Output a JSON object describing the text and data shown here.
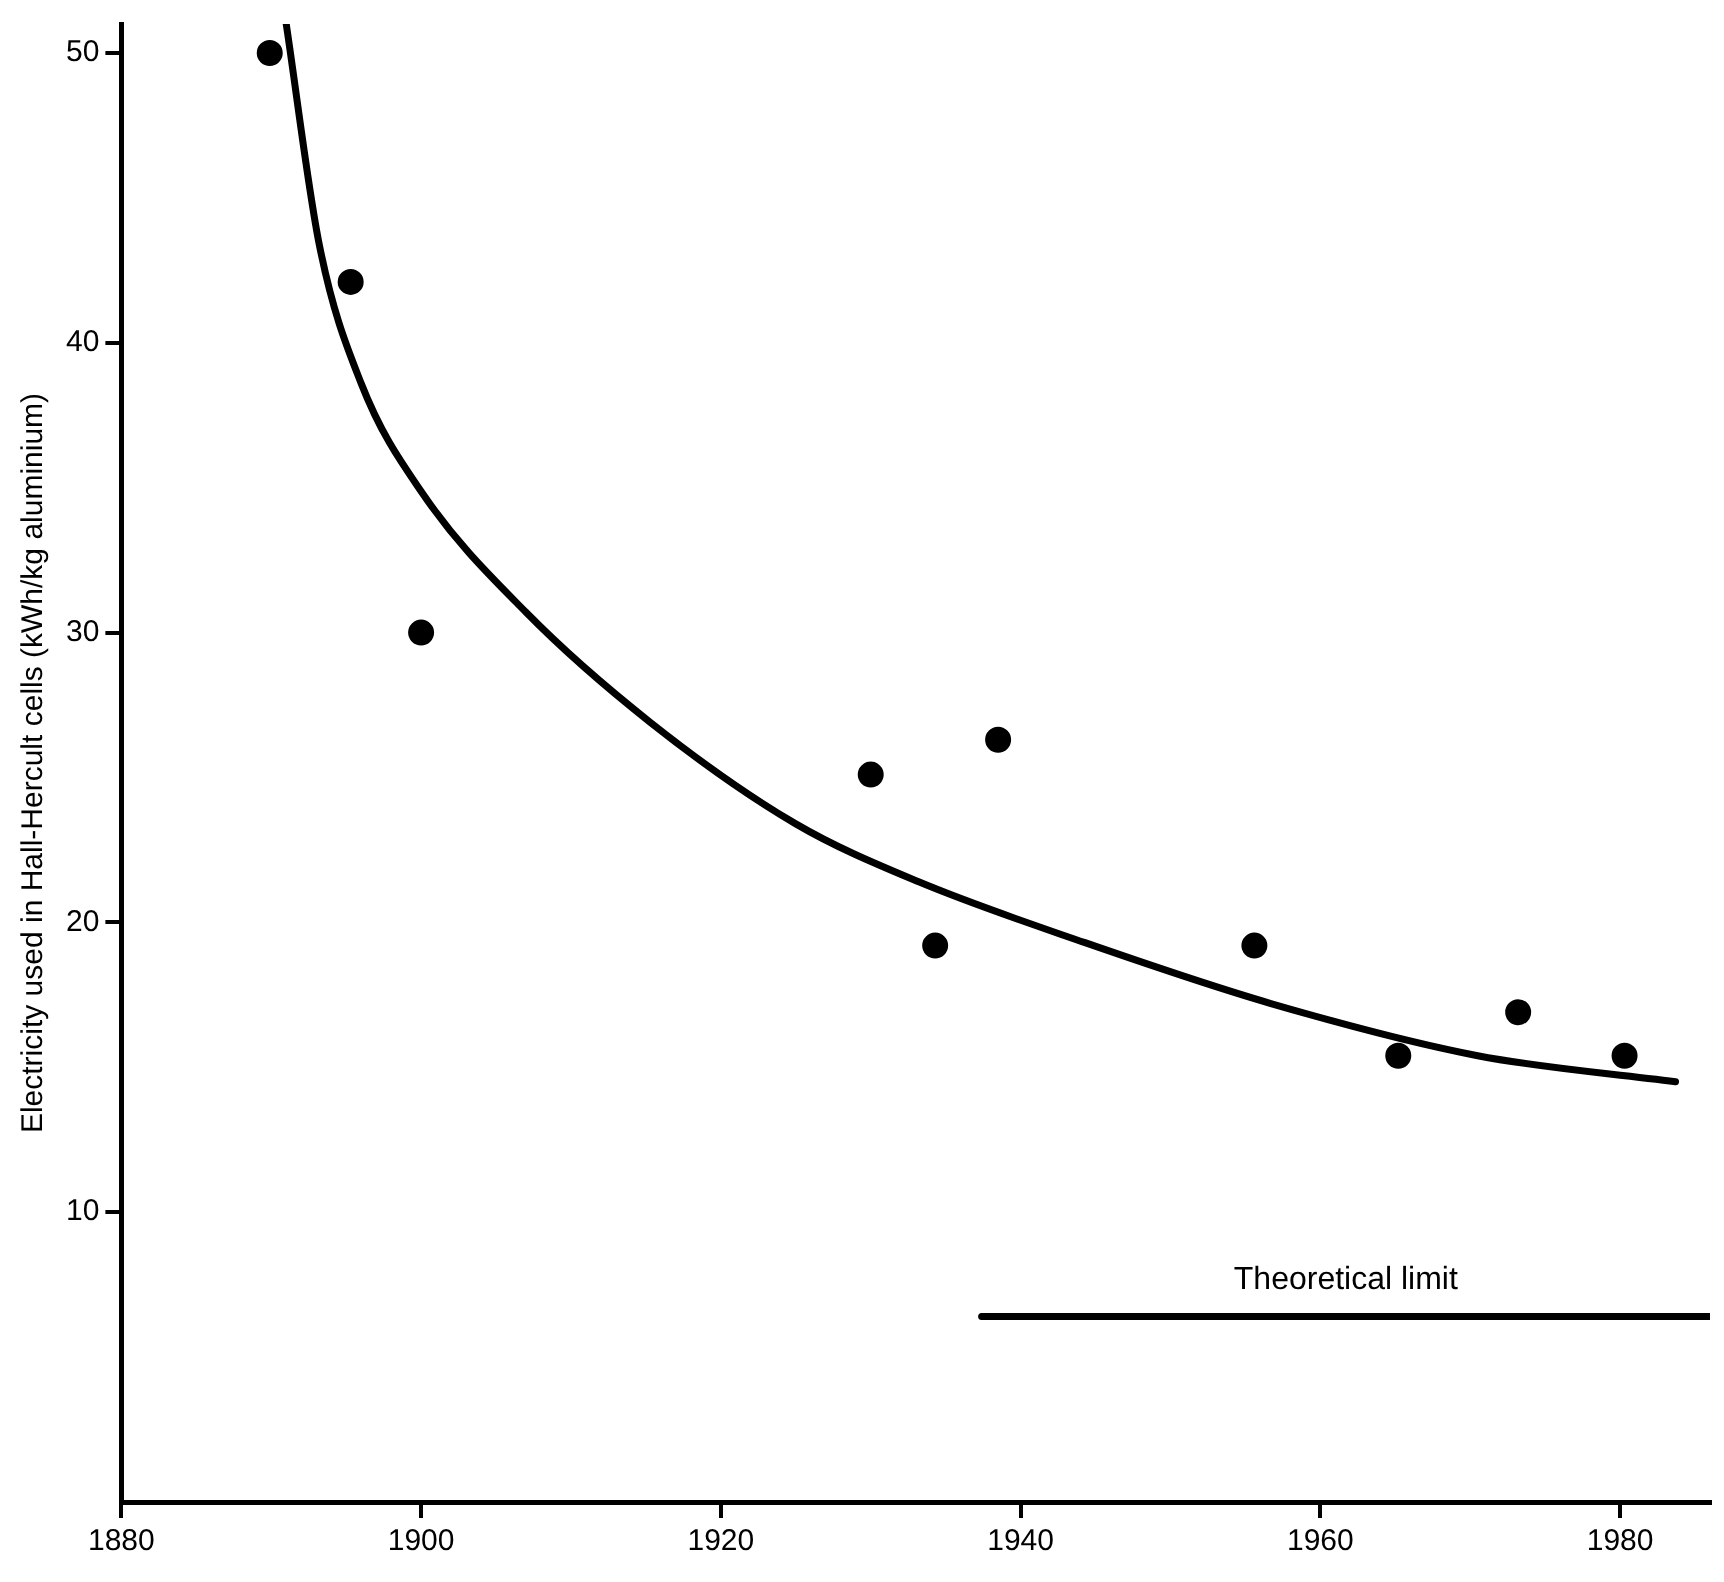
{
  "chart_data": {
    "type": "scatter",
    "ylabel": "Electricity used in Hall-Hercult cells (kWh/kg aluminium)",
    "xlim": [
      1880,
      1986
    ],
    "ylim": [
      0,
      51
    ],
    "xticks": [
      1880,
      1900,
      1920,
      1940,
      1960,
      1980
    ],
    "yticks": [
      10,
      20,
      30,
      40,
      50
    ],
    "grid": false,
    "legend": false,
    "marker": "circle",
    "series": [
      {
        "color": "#000000",
        "x": [
          1889.9,
          1895.3,
          1900,
          1930,
          1934.3,
          1938.5,
          1955.6,
          1965.2,
          1973.2,
          1980.3
        ],
        "values": [
          50,
          42.1,
          30,
          25.1,
          19.2,
          26.3,
          19.2,
          15.4,
          16.9,
          15.4
        ]
      },
      {
        "type": "line",
        "color": "#000000",
        "marker": "none",
        "x": [
          1891,
          1893.2,
          1896,
          1900.1,
          1907,
          1915.3,
          1925,
          1933.2,
          1944.3,
          1956.7,
          1970.5,
          1983.7
        ],
        "values": [
          51,
          43.4,
          38.6,
          34.8,
          30.7,
          26.9,
          23.4,
          21.4,
          19.3,
          17.2,
          15.4,
          14.5
        ]
      },
      {
        "type": "line",
        "name": "Theoretical limit",
        "color": "#000000",
        "marker": "none",
        "x": [
          1937.4,
          1986
        ],
        "values": [
          6.4,
          6.4
        ]
      }
    ]
  }
}
